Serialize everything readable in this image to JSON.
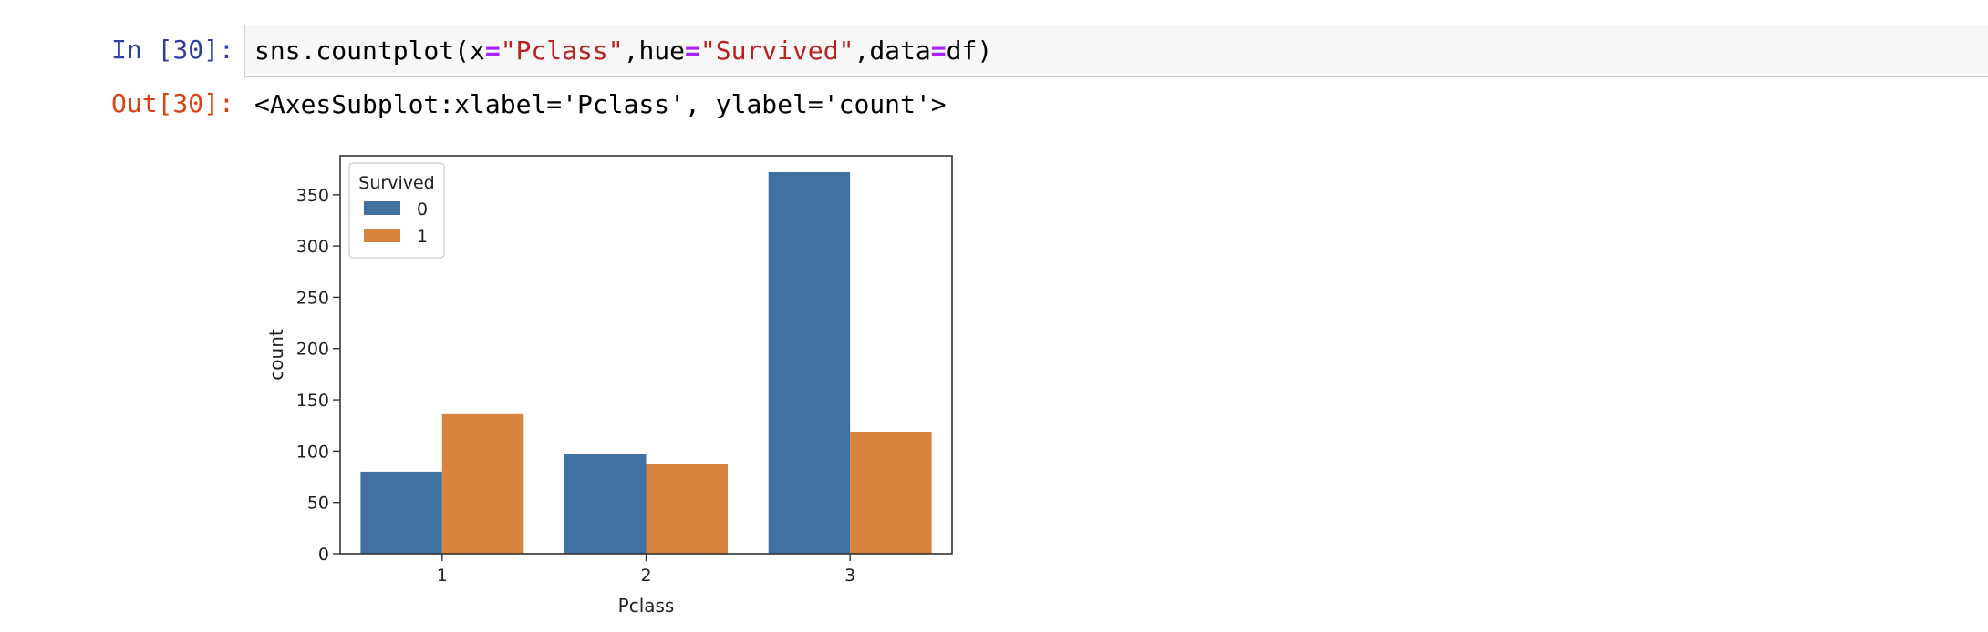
{
  "cell": {
    "in_prompt": "In [30]:",
    "out_prompt": "Out[30]:",
    "code": {
      "fn": "sns.countplot(x",
      "eq1": "=",
      "s1": "\"Pclass\"",
      "p2": ",hue",
      "eq2": "=",
      "s2": "\"Survived\"",
      "p3": ",data",
      "eq3": "=",
      "p4": "df)"
    },
    "output_text": "<AxesSubplot:xlabel='Pclass', ylabel='count'>"
  },
  "chart_data": {
    "type": "bar",
    "categories": [
      "1",
      "2",
      "3"
    ],
    "series": [
      {
        "name": "0",
        "values": [
          80,
          97,
          372
        ]
      },
      {
        "name": "1",
        "values": [
          136,
          87,
          119
        ]
      }
    ],
    "colors": [
      "#3f72a1",
      "#d8843e"
    ],
    "xlabel": "Pclass",
    "ylabel": "count",
    "ylim": [
      0,
      388
    ],
    "yticks": [
      0,
      50,
      100,
      150,
      200,
      250,
      300,
      350
    ],
    "legend": {
      "title": "Survived",
      "position": "top-left"
    },
    "grid": false
  }
}
